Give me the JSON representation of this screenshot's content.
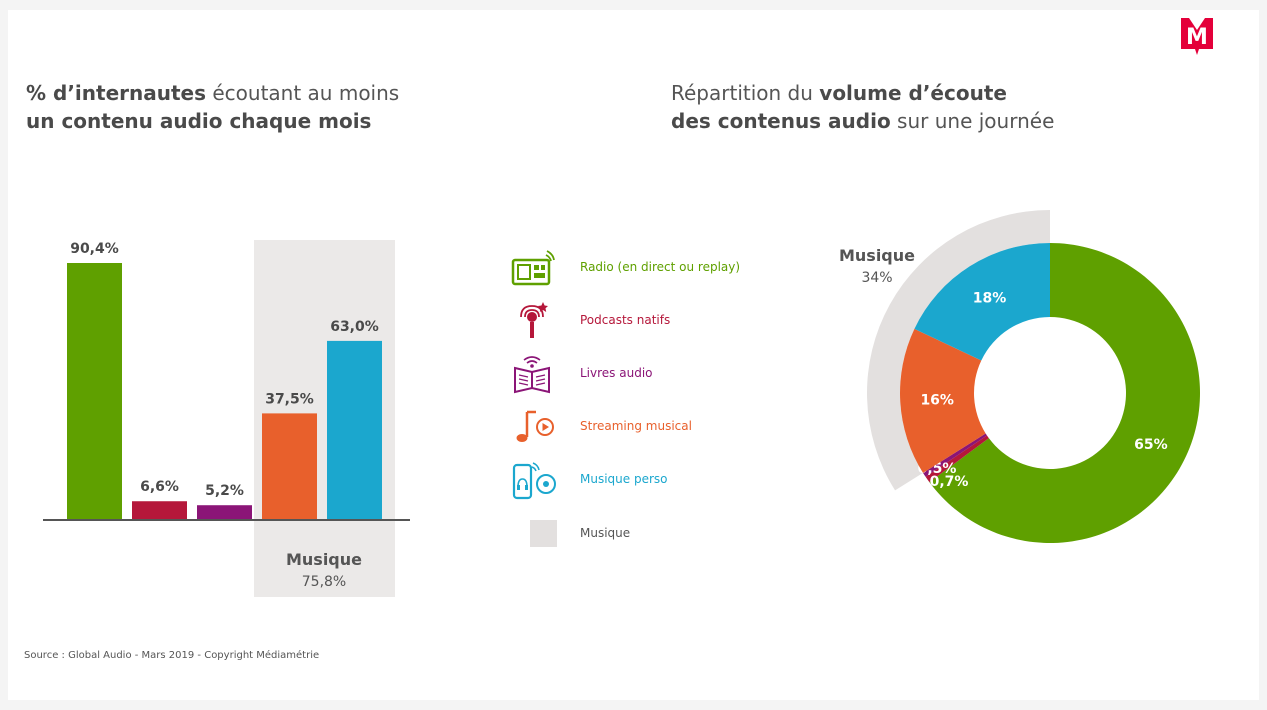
{
  "logo_letter": "M",
  "left_panel": {
    "title_bold1": "% d’internautes",
    "title_rest1": " écoutant au moins",
    "title_bold2": "un contenu audio chaque mois"
  },
  "right_panel": {
    "title_part1": "Répartition du ",
    "title_bold1": "volume d’écoute",
    "title_bold2": "des contenus audio",
    "title_part2": " sur une journée"
  },
  "legend": [
    {
      "label": "Radio (en direct ou replay)",
      "color": "#5fa000",
      "icon": "radio-icon"
    },
    {
      "label": "Podcasts natifs",
      "color": "#b5173a",
      "icon": "microphone-icon"
    },
    {
      "label": "Livres audio",
      "color": "#8b1577",
      "icon": "book-icon"
    },
    {
      "label": "Streaming musical",
      "color": "#e8602c",
      "icon": "music-note-icon"
    },
    {
      "label": "Musique perso",
      "color": "#1ba7ce",
      "icon": "smartphone-icon"
    },
    {
      "label": "Musique",
      "color": "#e3e0df",
      "icon": "gray-square-icon"
    }
  ],
  "chart_data": [
    {
      "type": "bar",
      "categories": [
        "Radio (en direct ou replay)",
        "Podcasts natifs",
        "Livres audio",
        "Streaming musical",
        "Musique perso"
      ],
      "values": [
        90.4,
        6.6,
        5.2,
        37.5,
        63.0
      ],
      "labels": [
        "90,4%",
        "6,6%",
        "5,2%",
        "37,5%",
        "63,0%"
      ],
      "colors": [
        "#5fa000",
        "#b5173a",
        "#8b1577",
        "#e8602c",
        "#1ba7ce"
      ],
      "ylim": [
        0,
        100
      ],
      "group": {
        "name": "Musique",
        "value_label": "75,8%",
        "value": 75.8,
        "members": [
          3,
          4
        ]
      }
    },
    {
      "type": "pie",
      "variant": "donut",
      "slices": [
        {
          "name": "Radio (en direct ou replay)",
          "value": 65,
          "label": "65%",
          "color": "#5fa000"
        },
        {
          "name": "Podcasts natifs",
          "value": 0.7,
          "label": "0,7%",
          "color": "#b5173a"
        },
        {
          "name": "Livres audio",
          "value": 0.5,
          "label": "0,5%",
          "color": "#8b1577"
        },
        {
          "name": "Streaming musical",
          "value": 16,
          "label": "16%",
          "color": "#e8602c"
        },
        {
          "name": "Musique perso",
          "value": 18,
          "label": "18%",
          "color": "#1ba7ce"
        }
      ],
      "group": {
        "name": "Musique",
        "value_label": "34%",
        "value": 34
      }
    }
  ],
  "source": "Source : Global Audio - Mars 2019 - Copyright Médiamétrie"
}
